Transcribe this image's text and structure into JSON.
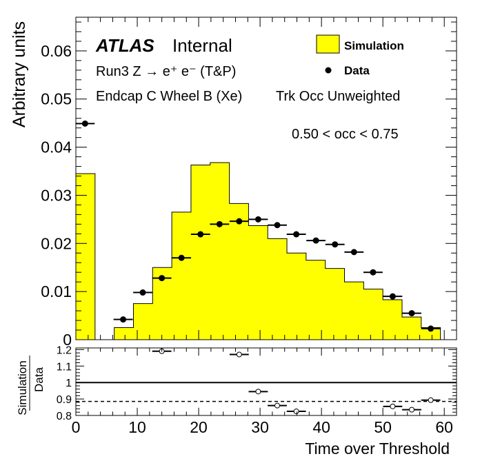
{
  "chart_data": [
    {
      "type": "histogram",
      "panel": "main",
      "ylabel": "Arbitrary units",
      "ylim": [
        0,
        0.067
      ],
      "xlim": [
        0,
        62
      ],
      "y_ticks": [
        "0",
        "0.01",
        "0.02",
        "0.03",
        "0.04",
        "0.05",
        "0.06"
      ],
      "y_tick_values": [
        0,
        0.01,
        0.02,
        0.03,
        0.04,
        0.05,
        0.06
      ],
      "annotations": {
        "atlas": "ATLAS",
        "atlas_status": "Internal",
        "process": "Run3 Z → e⁺ e⁻ (T&P)",
        "region": "Endcap C Wheel B (Xe)",
        "weighting": "Trk Occ Unweighted",
        "occ_range": "0.50 < occ < 0.75"
      },
      "legend": {
        "placement": "top-right",
        "simulation_label": "Simulation",
        "data_label": "Data"
      },
      "bin_edges": [
        0,
        3.125,
        6.25,
        9.375,
        12.5,
        15.625,
        18.75,
        21.875,
        25,
        28.125,
        31.25,
        34.375,
        37.5,
        40.625,
        43.75,
        46.875,
        50,
        53.125,
        56.25,
        59.375,
        62.5
      ],
      "series": [
        {
          "name": "Simulation",
          "kind": "filled-step",
          "color": "#ffff00",
          "values": [
            0.0345,
            0,
            0.0025,
            0.0075,
            0.015,
            0.0265,
            0.0363,
            0.0368,
            0.0283,
            0.0237,
            0.021,
            0.018,
            0.0165,
            0.0148,
            0.012,
            0.0105,
            0.0083,
            0.0047,
            0.0025,
            0,
            0
          ]
        },
        {
          "name": "Data",
          "kind": "points",
          "color": "#000000",
          "x": [
            1.5,
            7.7,
            10.9,
            14.0,
            17.2,
            20.3,
            23.4,
            26.6,
            29.7,
            32.8,
            35.9,
            39.1,
            42.2,
            45.3,
            48.4,
            51.6,
            54.7,
            57.8
          ],
          "y": [
            0.0449,
            0.0042,
            0.0098,
            0.0128,
            0.017,
            0.0219,
            0.024,
            0.0246,
            0.025,
            0.0238,
            0.0219,
            0.0206,
            0.0198,
            0.0182,
            0.014,
            0.009,
            0.0055,
            0.0023
          ]
        }
      ]
    },
    {
      "type": "scatter",
      "panel": "ratio",
      "xlabel": "Time over Threshold",
      "ylabel_numerator": "Simulation",
      "ylabel_denominator": "Data",
      "ylim": [
        0.8,
        1.21
      ],
      "xlim": [
        0,
        62
      ],
      "x_ticks": [
        "0",
        "10",
        "20",
        "30",
        "40",
        "50",
        "60"
      ],
      "x_tick_values": [
        0,
        10,
        20,
        30,
        40,
        50,
        60
      ],
      "y_ticks": [
        "0.8",
        "0.9",
        "1",
        "1.1",
        "1.2"
      ],
      "y_tick_values": [
        0.8,
        0.9,
        1.0,
        1.1,
        1.2
      ],
      "reference_lines": [
        {
          "y": 1.0,
          "style": "solid"
        },
        {
          "y": 0.885,
          "style": "dashed"
        }
      ],
      "series": [
        {
          "name": "Simulation/Data",
          "kind": "open-points",
          "x": [
            14.0,
            26.6,
            29.7,
            32.8,
            35.9,
            51.6,
            54.7,
            57.8
          ],
          "y": [
            1.19,
            1.17,
            0.945,
            0.86,
            0.825,
            0.855,
            0.835,
            0.893
          ]
        }
      ]
    }
  ]
}
